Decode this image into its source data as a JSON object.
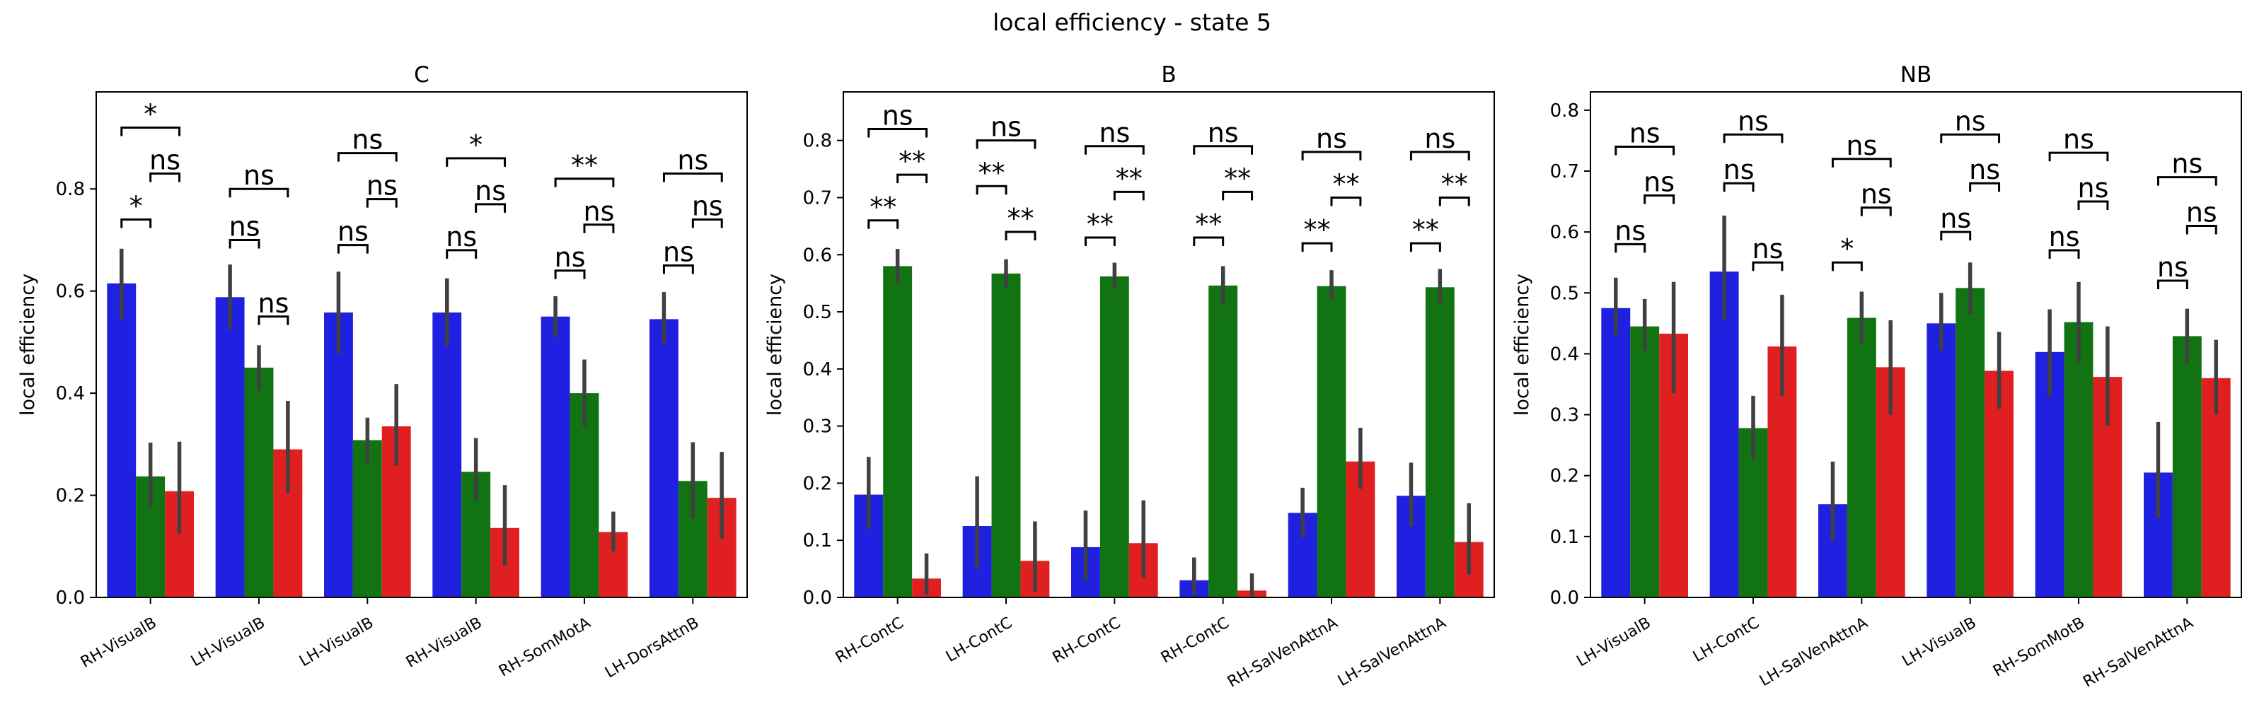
{
  "figure": {
    "title": "local efficiency - state 5",
    "colors": [
      "#2020e0",
      "#117311",
      "#e02020"
    ]
  },
  "chart_data": [
    {
      "type": "bar",
      "title": "C",
      "ylabel": "local efficiency",
      "ylim": [
        0,
        0.99
      ],
      "yticks": [
        "0.0",
        "0.2",
        "0.4",
        "0.6",
        "0.8"
      ],
      "categories": [
        "RH-VisualB",
        "LH-VisualB",
        "LH-VisualB",
        "RH-VisualB",
        "RH-SomMotA",
        "LH-DorsAttnB"
      ],
      "series": [
        {
          "values": [
            0.615,
            0.588,
            0.558,
            0.558,
            0.55,
            0.545
          ],
          "err_low": [
            0.545,
            0.525,
            0.478,
            0.492,
            0.51,
            0.495
          ],
          "err_high": [
            0.683,
            0.652,
            0.638,
            0.625,
            0.59,
            0.598
          ]
        },
        {
          "values": [
            0.237,
            0.45,
            0.308,
            0.246,
            0.4,
            0.228
          ],
          "err_low": [
            0.18,
            0.405,
            0.262,
            0.19,
            0.335,
            0.155
          ],
          "err_high": [
            0.303,
            0.494,
            0.352,
            0.312,
            0.466,
            0.304
          ]
        },
        {
          "values": [
            0.208,
            0.29,
            0.335,
            0.136,
            0.128,
            0.195
          ],
          "err_low": [
            0.125,
            0.205,
            0.258,
            0.062,
            0.09,
            0.115
          ],
          "err_high": [
            0.305,
            0.385,
            0.418,
            0.22,
            0.168,
            0.285
          ]
        }
      ],
      "brackets": [
        {
          "pair": "01",
          "label": "*",
          "y": 0.74
        },
        {
          "pair": "02",
          "label": "*",
          "y": 0.92
        },
        {
          "pair": "12",
          "label": "ns",
          "y": 0.83
        },
        {
          "pair": "01",
          "label": "ns",
          "y": 0.7
        },
        {
          "pair": "02",
          "label": "ns",
          "y": 0.8
        },
        {
          "pair": "12",
          "label": "ns",
          "y": 0.55
        },
        {
          "pair": "01",
          "label": "ns",
          "y": 0.69
        },
        {
          "pair": "02",
          "label": "ns",
          "y": 0.87
        },
        {
          "pair": "12",
          "label": "ns",
          "y": 0.78
        },
        {
          "pair": "01",
          "label": "ns",
          "y": 0.68
        },
        {
          "pair": "02",
          "label": "*",
          "y": 0.86
        },
        {
          "pair": "12",
          "label": "ns",
          "y": 0.77
        },
        {
          "pair": "01",
          "label": "ns",
          "y": 0.64
        },
        {
          "pair": "02",
          "label": "**",
          "y": 0.82
        },
        {
          "pair": "12",
          "label": "ns",
          "y": 0.73
        },
        {
          "pair": "01",
          "label": "ns",
          "y": 0.65
        },
        {
          "pair": "02",
          "label": "ns",
          "y": 0.83
        },
        {
          "pair": "12",
          "label": "ns",
          "y": 0.74
        }
      ]
    },
    {
      "type": "bar",
      "title": "B",
      "ylabel": "local efficiency",
      "ylim": [
        0,
        0.885
      ],
      "yticks": [
        "0.0",
        "0.1",
        "0.2",
        "0.3",
        "0.4",
        "0.5",
        "0.6",
        "0.7",
        "0.8"
      ],
      "categories": [
        "RH-ContC",
        "LH-ContC",
        "RH-ContC",
        "RH-ContC",
        "RH-SalVenAttnA",
        "LH-SalVenAttnA"
      ],
      "series": [
        {
          "values": [
            0.18,
            0.125,
            0.088,
            0.03,
            0.148,
            0.178
          ],
          "err_low": [
            0.12,
            0.05,
            0.03,
            0.005,
            0.105,
            0.125
          ],
          "err_high": [
            0.246,
            0.212,
            0.152,
            0.07,
            0.192,
            0.236
          ]
        },
        {
          "values": [
            0.58,
            0.567,
            0.562,
            0.546,
            0.545,
            0.543
          ],
          "err_low": [
            0.55,
            0.542,
            0.54,
            0.512,
            0.52,
            0.515
          ],
          "err_high": [
            0.61,
            0.592,
            0.586,
            0.58,
            0.573,
            0.575
          ]
        },
        {
          "values": [
            0.033,
            0.064,
            0.095,
            0.012,
            0.238,
            0.097
          ],
          "err_low": [
            0.005,
            0.01,
            0.035,
            0.002,
            0.19,
            0.04
          ],
          "err_high": [
            0.077,
            0.133,
            0.17,
            0.042,
            0.297,
            0.165
          ]
        }
      ],
      "brackets": [
        {
          "pair": "01",
          "label": "**",
          "y": 0.66
        },
        {
          "pair": "02",
          "label": "ns",
          "y": 0.82
        },
        {
          "pair": "12",
          "label": "**",
          "y": 0.74
        },
        {
          "pair": "01",
          "label": "**",
          "y": 0.72
        },
        {
          "pair": "02",
          "label": "ns",
          "y": 0.8
        },
        {
          "pair": "12",
          "label": "**",
          "y": 0.64
        },
        {
          "pair": "01",
          "label": "**",
          "y": 0.63
        },
        {
          "pair": "02",
          "label": "ns",
          "y": 0.79
        },
        {
          "pair": "12",
          "label": "**",
          "y": 0.71
        },
        {
          "pair": "01",
          "label": "**",
          "y": 0.63
        },
        {
          "pair": "02",
          "label": "ns",
          "y": 0.79
        },
        {
          "pair": "12",
          "label": "**",
          "y": 0.71
        },
        {
          "pair": "01",
          "label": "**",
          "y": 0.62
        },
        {
          "pair": "02",
          "label": "ns",
          "y": 0.78
        },
        {
          "pair": "12",
          "label": "**",
          "y": 0.7
        },
        {
          "pair": "01",
          "label": "**",
          "y": 0.62
        },
        {
          "pair": "02",
          "label": "ns",
          "y": 0.78
        },
        {
          "pair": "12",
          "label": "**",
          "y": 0.7
        }
      ]
    },
    {
      "type": "bar",
      "title": "NB",
      "ylabel": "local efficiency",
      "ylim": [
        0,
        0.83
      ],
      "yticks": [
        "0.0",
        "0.1",
        "0.2",
        "0.3",
        "0.4",
        "0.5",
        "0.6",
        "0.7",
        "0.8"
      ],
      "categories": [
        "LH-VisualB",
        "LH-ContC",
        "LH-SalVenAttnA",
        "LH-VisualB",
        "RH-SomMotB",
        "RH-SalVenAttnA"
      ],
      "series": [
        {
          "values": [
            0.475,
            0.535,
            0.153,
            0.45,
            0.403,
            0.205
          ],
          "err_low": [
            0.43,
            0.455,
            0.093,
            0.405,
            0.33,
            0.13
          ],
          "err_high": [
            0.525,
            0.627,
            0.223,
            0.5,
            0.473,
            0.288
          ]
        },
        {
          "values": [
            0.445,
            0.278,
            0.459,
            0.508,
            0.452,
            0.429
          ],
          "err_low": [
            0.405,
            0.225,
            0.415,
            0.465,
            0.385,
            0.385
          ],
          "err_high": [
            0.49,
            0.331,
            0.502,
            0.55,
            0.518,
            0.474
          ]
        },
        {
          "values": [
            0.433,
            0.412,
            0.378,
            0.372,
            0.362,
            0.36
          ],
          "err_low": [
            0.335,
            0.33,
            0.3,
            0.31,
            0.282,
            0.3
          ],
          "err_high": [
            0.518,
            0.497,
            0.455,
            0.436,
            0.445,
            0.423
          ]
        }
      ],
      "brackets": [
        {
          "pair": "01",
          "label": "ns",
          "y": 0.58
        },
        {
          "pair": "02",
          "label": "ns",
          "y": 0.74
        },
        {
          "pair": "12",
          "label": "ns",
          "y": 0.66
        },
        {
          "pair": "01",
          "label": "ns",
          "y": 0.68
        },
        {
          "pair": "02",
          "label": "ns",
          "y": 0.76
        },
        {
          "pair": "12",
          "label": "ns",
          "y": 0.55
        },
        {
          "pair": "01",
          "label": "*",
          "y": 0.55
        },
        {
          "pair": "02",
          "label": "ns",
          "y": 0.72
        },
        {
          "pair": "12",
          "label": "ns",
          "y": 0.64
        },
        {
          "pair": "01",
          "label": "ns",
          "y": 0.6
        },
        {
          "pair": "02",
          "label": "ns",
          "y": 0.76
        },
        {
          "pair": "12",
          "label": "ns",
          "y": 0.68
        },
        {
          "pair": "01",
          "label": "ns",
          "y": 0.57
        },
        {
          "pair": "02",
          "label": "ns",
          "y": 0.73
        },
        {
          "pair": "12",
          "label": "ns",
          "y": 0.65
        },
        {
          "pair": "01",
          "label": "ns",
          "y": 0.52
        },
        {
          "pair": "02",
          "label": "ns",
          "y": 0.69
        },
        {
          "pair": "12",
          "label": "ns",
          "y": 0.61
        }
      ]
    }
  ]
}
